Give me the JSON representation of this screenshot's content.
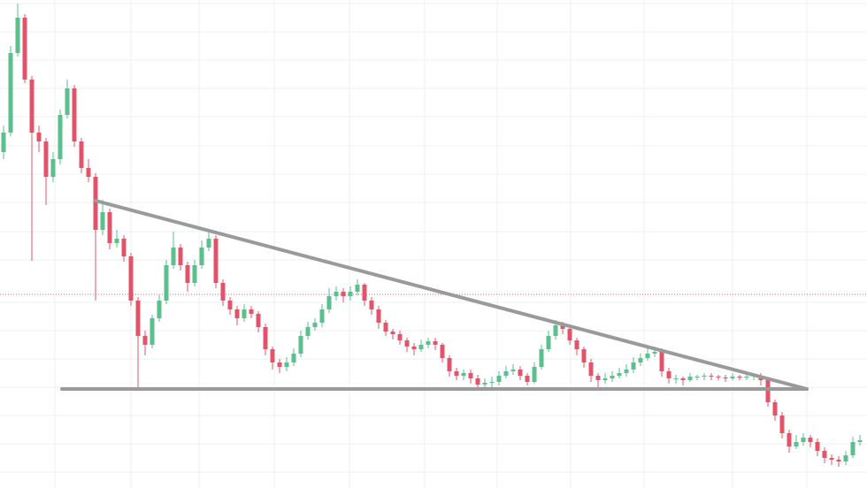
{
  "chart_data": {
    "type": "candlestick",
    "x": [
      4,
      12,
      20,
      28,
      36,
      44,
      52,
      60,
      68,
      76,
      84,
      92,
      100,
      108,
      116,
      124,
      132,
      140,
      148,
      156,
      164,
      172,
      180,
      188,
      196,
      204,
      212,
      220,
      228,
      236,
      244,
      252,
      260,
      268,
      276,
      284,
      292,
      300,
      308,
      316,
      324,
      332,
      340,
      348,
      356,
      364,
      372,
      380,
      388,
      396,
      404,
      412,
      420,
      428,
      436,
      444,
      452,
      460,
      468,
      476,
      484,
      492,
      500,
      508,
      516,
      524,
      532,
      540,
      548,
      556,
      564,
      572,
      580,
      588,
      596,
      604,
      612,
      620,
      628,
      636,
      644,
      652,
      660,
      668,
      676,
      684,
      692,
      700,
      708,
      716,
      724,
      732,
      740,
      748,
      756,
      764,
      772,
      780,
      788,
      796,
      804,
      812,
      820,
      828,
      836,
      844,
      852,
      860,
      868,
      876,
      884,
      892,
      900,
      908,
      916,
      924,
      932,
      940,
      948,
      956,
      964,
      972
    ],
    "open": [
      380,
      402,
      492,
      532,
      462,
      402,
      392,
      352,
      372,
      422,
      452,
      392,
      362,
      352,
      292,
      312,
      277,
      282,
      262,
      212,
      172,
      162,
      192,
      212,
      252,
      272,
      252,
      232,
      252,
      272,
      282,
      232,
      212,
      202,
      192,
      202,
      197,
      182,
      157,
      142,
      137,
      142,
      152,
      172,
      182,
      187,
      202,
      217,
      222,
      217,
      222,
      230,
      212,
      202,
      187,
      177,
      174,
      167,
      160,
      157,
      162,
      166,
      162,
      147,
      132,
      127,
      130,
      124,
      117,
      119,
      120,
      127,
      132,
      134,
      127,
      120,
      137,
      157,
      172,
      184,
      180,
      167,
      157,
      142,
      127,
      122,
      124,
      127,
      130,
      134,
      142,
      147,
      152,
      154,
      132,
      124,
      124,
      122,
      126,
      126,
      127,
      126,
      125,
      124,
      126,
      125,
      126,
      127,
      122,
      97,
      82,
      62,
      47,
      52,
      57,
      52,
      42,
      34,
      32,
      30,
      37,
      52
    ],
    "high": [
      410,
      500,
      548,
      536,
      466,
      410,
      396,
      380,
      428,
      462,
      456,
      396,
      372,
      356,
      326,
      316,
      292,
      286,
      266,
      216,
      178,
      196,
      218,
      258,
      290,
      276,
      256,
      258,
      280,
      290,
      286,
      236,
      216,
      206,
      208,
      206,
      200,
      186,
      160,
      146,
      148,
      158,
      178,
      188,
      192,
      208,
      226,
      228,
      226,
      228,
      236,
      232,
      216,
      206,
      190,
      180,
      178,
      170,
      164,
      168,
      170,
      170,
      164,
      150,
      136,
      134,
      134,
      128,
      124,
      126,
      132,
      138,
      140,
      138,
      130,
      142,
      162,
      178,
      190,
      188,
      182,
      170,
      160,
      146,
      130,
      130,
      132,
      136,
      140,
      148,
      152,
      158,
      160,
      158,
      136,
      128,
      126,
      130,
      128,
      130,
      130,
      128,
      128,
      130,
      128,
      130,
      130,
      130,
      124,
      100,
      86,
      66,
      60,
      62,
      60,
      56,
      46,
      38,
      36,
      42,
      58,
      60
    ],
    "low": [
      372,
      398,
      488,
      458,
      257,
      380,
      320,
      346,
      366,
      418,
      386,
      356,
      346,
      212,
      286,
      270,
      272,
      256,
      206,
      112,
      150,
      158,
      188,
      208,
      248,
      246,
      222,
      228,
      248,
      268,
      226,
      206,
      196,
      184,
      188,
      192,
      176,
      150,
      134,
      130,
      132,
      138,
      148,
      168,
      178,
      182,
      198,
      212,
      210,
      212,
      218,
      206,
      196,
      180,
      172,
      168,
      162,
      154,
      150,
      154,
      158,
      156,
      142,
      126,
      122,
      122,
      118,
      112,
      110,
      112,
      116,
      124,
      128,
      122,
      116,
      118,
      134,
      154,
      168,
      174,
      162,
      150,
      136,
      120,
      114,
      118,
      120,
      124,
      126,
      130,
      138,
      144,
      148,
      126,
      118,
      118,
      116,
      120,
      122,
      122,
      122,
      122,
      120,
      122,
      122,
      122,
      122,
      116,
      92,
      76,
      56,
      40,
      44,
      48,
      46,
      36,
      28,
      26,
      24,
      26,
      34,
      48
    ],
    "close": [
      402,
      492,
      532,
      462,
      402,
      392,
      352,
      372,
      422,
      452,
      392,
      362,
      352,
      292,
      312,
      277,
      282,
      262,
      212,
      172,
      162,
      192,
      212,
      252,
      272,
      252,
      232,
      252,
      272,
      282,
      232,
      212,
      202,
      192,
      202,
      197,
      182,
      157,
      142,
      137,
      142,
      152,
      172,
      182,
      187,
      202,
      217,
      222,
      217,
      222,
      230,
      212,
      202,
      187,
      177,
      174,
      167,
      160,
      157,
      162,
      166,
      162,
      147,
      132,
      127,
      130,
      124,
      117,
      119,
      120,
      127,
      132,
      134,
      127,
      120,
      137,
      157,
      172,
      184,
      180,
      167,
      157,
      142,
      127,
      122,
      124,
      127,
      130,
      134,
      142,
      147,
      152,
      154,
      132,
      124,
      124,
      122,
      126,
      126,
      127,
      126,
      125,
      124,
      126,
      125,
      126,
      127,
      122,
      97,
      82,
      62,
      47,
      52,
      57,
      52,
      42,
      34,
      32,
      30,
      37,
      52,
      54
    ],
    "up_color": "#5cbf8e",
    "down_color": "#e2546a",
    "xlim": [
      0,
      980
    ],
    "ylim": [
      0,
      552
    ],
    "xticks": [
      62,
      148,
      225,
      310,
      395,
      480,
      562,
      645,
      728,
      828,
      912
    ],
    "yticks": [
      548,
      516,
      484,
      452,
      420,
      387,
      355,
      323,
      290,
      258,
      210,
      178,
      146,
      114,
      82,
      50,
      18
    ],
    "grid": true,
    "grid_color": "#eceff3",
    "price_line": {
      "value": 219,
      "color": "#e06070"
    },
    "trendlines": [
      {
        "x": [
          108,
          912
        ],
        "y": [
          325,
          112
        ],
        "color": "#9a9a9a"
      },
      {
        "x": [
          70,
          912
        ],
        "y": [
          112,
          112
        ],
        "color": "#9a9a9a"
      }
    ]
  }
}
